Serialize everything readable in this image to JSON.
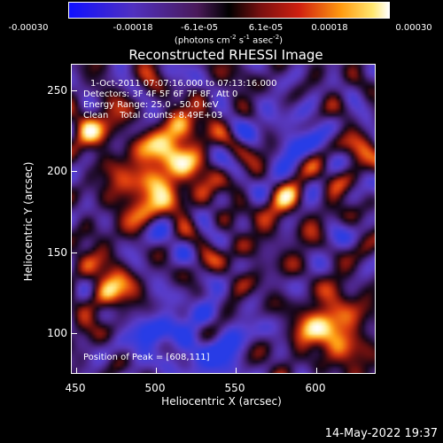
{
  "colorbar": {
    "ticks": [
      "-0.00030",
      "-0.00018",
      "-6.1e-05",
      "6.1e-05",
      "0.00018",
      "0.00030"
    ],
    "units_text": "(photons cm",
    "units_sup1": "-2",
    "units_mid1": " s",
    "units_sup2": "-1",
    "units_mid2": " asec",
    "units_sup3": "-2",
    "units_end": ")"
  },
  "title": "Reconstructed RHESSI Image",
  "info": {
    "time_range": "1-Oct-2011 07:07:16.000 to 07:13:16.000",
    "detectors": "Detectors: 3F 4F 5F 6F 7F 8F, Att 0",
    "energy": "Energy Range: 25.0 - 50.0 keV",
    "clean": "Clean    Total counts: 8.49E+03",
    "peak": "Position of Peak = [608,111]"
  },
  "axes": {
    "xlabel": "Heliocentric X (arcsec)",
    "ylabel": "Heliocentric Y (arcsec)",
    "xticks": [
      "450",
      "500",
      "550",
      "600"
    ],
    "yticks": [
      "250",
      "200",
      "150",
      "100"
    ],
    "xrange": [
      445,
      636
    ],
    "yrange": [
      80,
      275
    ]
  },
  "timestamp": "14-May-2022 19:37"
}
